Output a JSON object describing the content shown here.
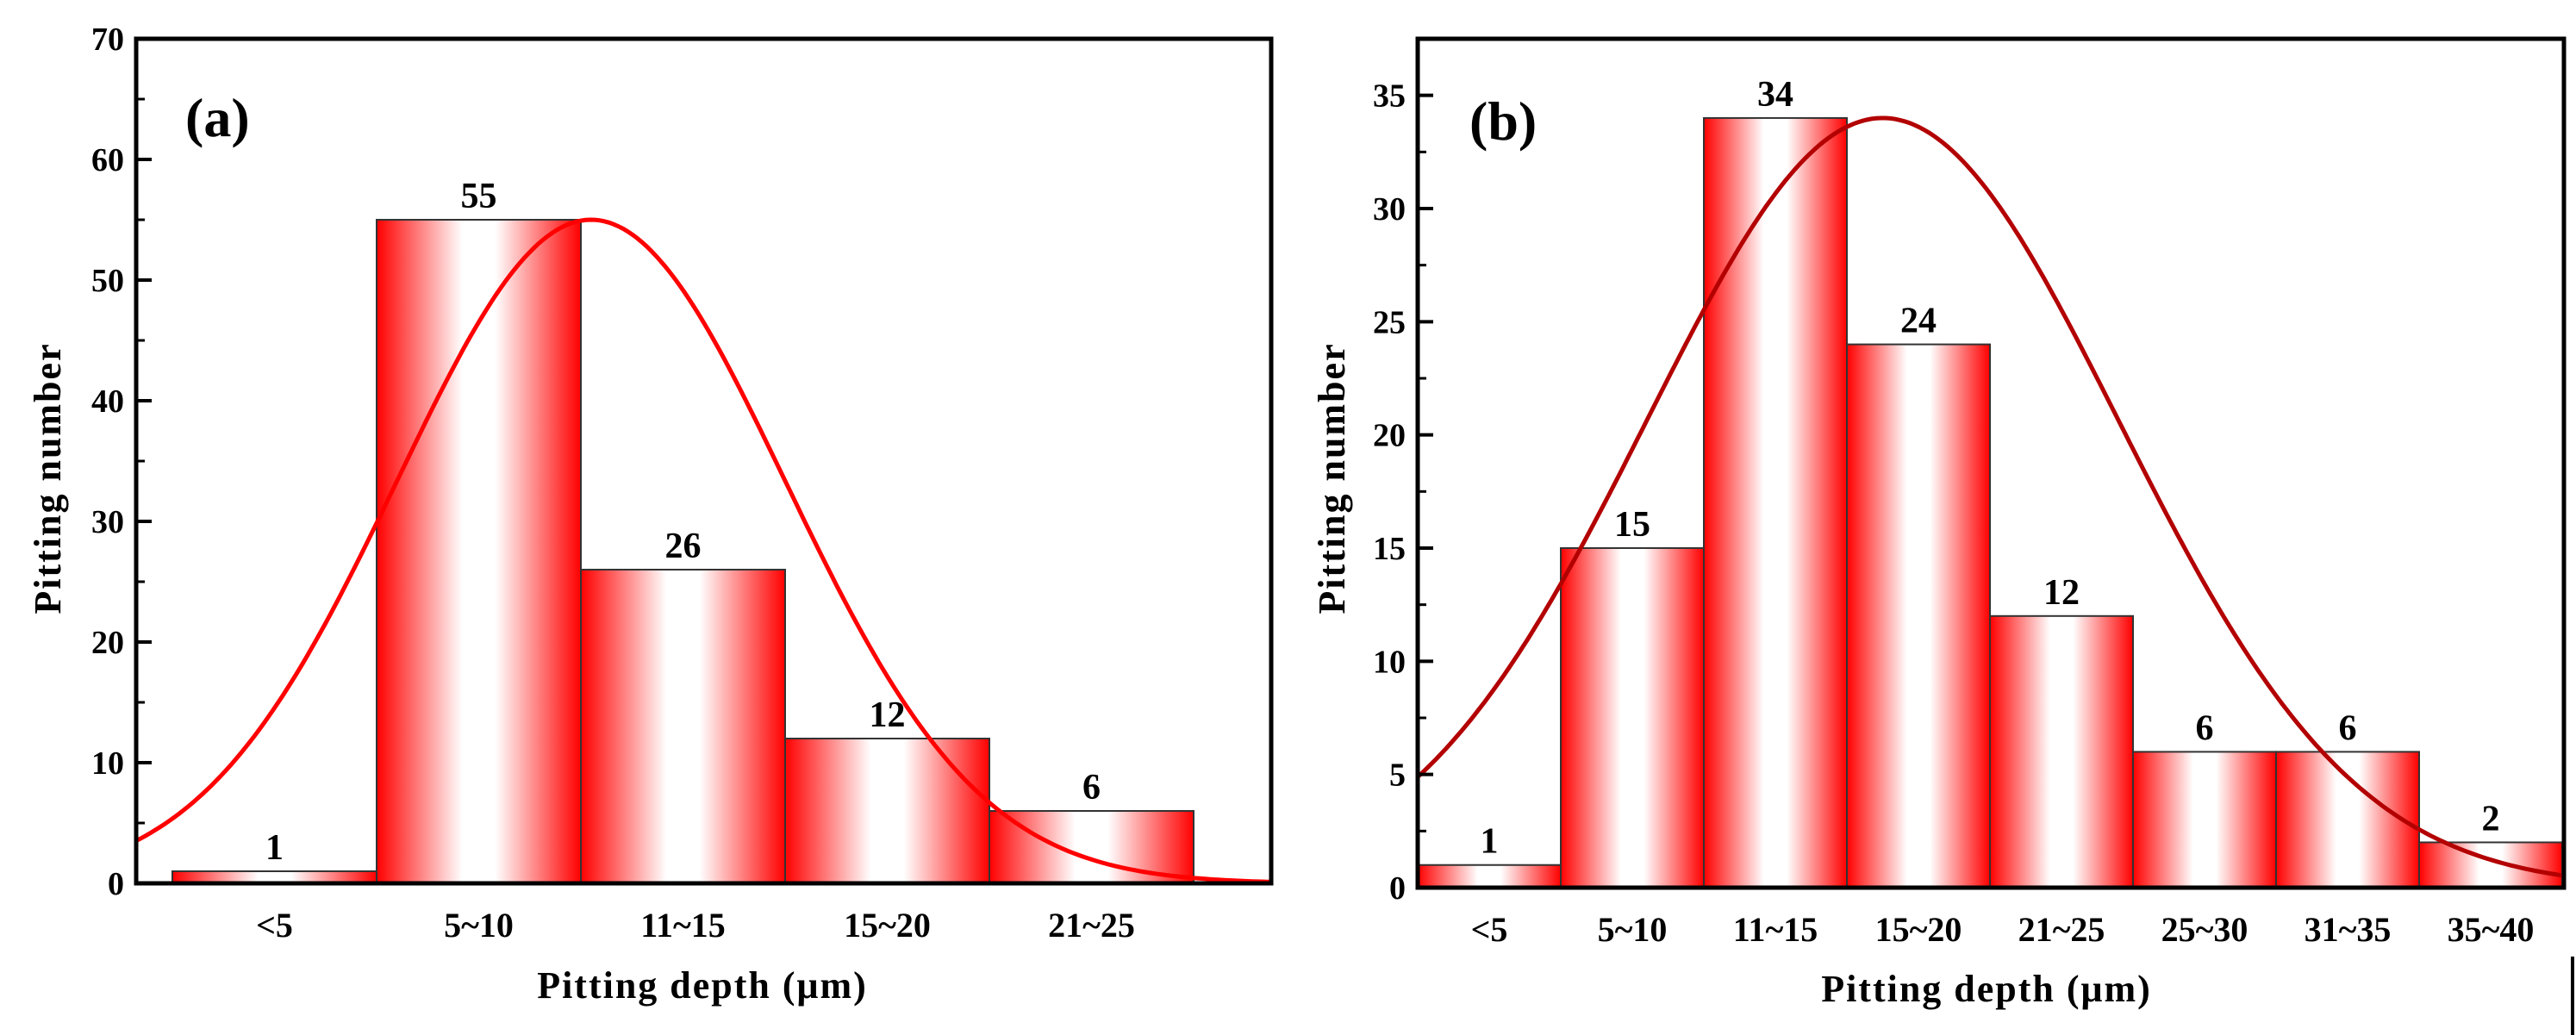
{
  "chart_data": [
    {
      "type": "bar",
      "panel_label": "(a)",
      "categories": [
        "<5",
        "5~10",
        "11~15",
        "15~20",
        "21~25"
      ],
      "values": [
        1,
        55,
        26,
        12,
        6
      ],
      "data_labels": [
        "1",
        "55",
        "26",
        "12",
        "6"
      ],
      "xlabel": "Pitting depth (μm)",
      "ylabel": "Pitting number",
      "ylim": [
        0,
        70
      ],
      "yticks": [
        0,
        10,
        20,
        30,
        40,
        50,
        60,
        70
      ],
      "fit_curve": {
        "type": "gaussian",
        "peak_value": 55,
        "peak_position_category": 2.05,
        "sigma_categories": 0.95
      },
      "colors": {
        "bar_edge": "#ff0000",
        "bar_center": "#ffffff",
        "curve": "#ff0000"
      }
    },
    {
      "type": "bar",
      "panel_label": "(b)",
      "categories": [
        "<5",
        "5~10",
        "11~15",
        "15~20",
        "21~25",
        "25~30",
        "31~35",
        "35~40"
      ],
      "values": [
        1,
        15,
        34,
        24,
        12,
        6,
        6,
        2
      ],
      "data_labels": [
        "1",
        "15",
        "34",
        "24",
        "12",
        "6",
        "6",
        "2"
      ],
      "xlabel": "Pitting depth (μm)",
      "ylabel": "Pitting number",
      "ylim": [
        0,
        37.5
      ],
      "yticks": [
        0,
        5,
        10,
        15,
        20,
        25,
        30,
        35
      ],
      "fit_curve": {
        "type": "gaussian",
        "peak_value": 34,
        "peak_position_category": 3.25,
        "sigma_categories": 1.65
      },
      "colors": {
        "bar_edge": "#ff0000",
        "bar_center": "#ffffff",
        "curve": "#b30000"
      }
    }
  ]
}
